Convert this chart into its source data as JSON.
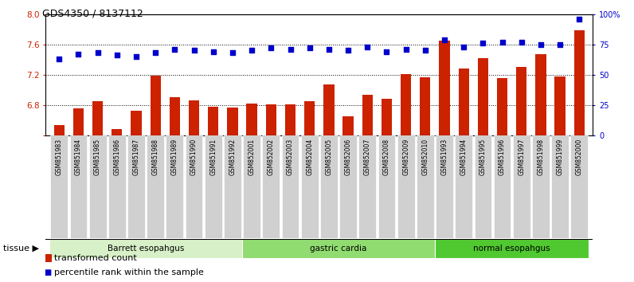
{
  "title": "GDS4350 / 8137112",
  "samples": [
    "GSM851983",
    "GSM851984",
    "GSM851985",
    "GSM851986",
    "GSM851987",
    "GSM851988",
    "GSM851989",
    "GSM851990",
    "GSM851991",
    "GSM851992",
    "GSM852001",
    "GSM852002",
    "GSM852003",
    "GSM852004",
    "GSM852005",
    "GSM852006",
    "GSM852007",
    "GSM852008",
    "GSM852009",
    "GSM852010",
    "GSM851993",
    "GSM851994",
    "GSM851995",
    "GSM851996",
    "GSM851997",
    "GSM851998",
    "GSM851999",
    "GSM852000"
  ],
  "bar_values": [
    6.54,
    6.76,
    6.85,
    6.48,
    6.72,
    7.19,
    6.9,
    6.86,
    6.78,
    6.77,
    6.82,
    6.81,
    6.81,
    6.85,
    7.07,
    6.65,
    6.93,
    6.88,
    7.21,
    7.17,
    7.65,
    7.28,
    7.42,
    7.16,
    7.3,
    7.47,
    7.18,
    7.79
  ],
  "dot_values": [
    63,
    67,
    68,
    66,
    65,
    68,
    71,
    70,
    69,
    68,
    70,
    72,
    71,
    72,
    71,
    70,
    73,
    69,
    71,
    70,
    79,
    73,
    76,
    77,
    77,
    75,
    75,
    96
  ],
  "groups": [
    {
      "label": "Barrett esopahgus",
      "start": 0,
      "end": 10,
      "color": "#d8f0c8"
    },
    {
      "label": "gastric cardia",
      "start": 10,
      "end": 20,
      "color": "#90dc70"
    },
    {
      "label": "normal esopahgus",
      "start": 20,
      "end": 28,
      "color": "#50c830"
    }
  ],
  "bar_color": "#cc2200",
  "dot_color": "#0000cc",
  "ylim_left": [
    6.4,
    8.0
  ],
  "ylim_right": [
    0,
    100
  ],
  "yticks_left": [
    6.4,
    6.8,
    7.2,
    7.6,
    8.0
  ],
  "yticks_right": [
    0,
    25,
    50,
    75,
    100
  ],
  "ytick_labels_right": [
    "0",
    "25",
    "50",
    "75",
    "100%"
  ],
  "grid_values": [
    6.8,
    7.2,
    7.6
  ],
  "background_color": "#ffffff",
  "tissue_label": "tissue"
}
